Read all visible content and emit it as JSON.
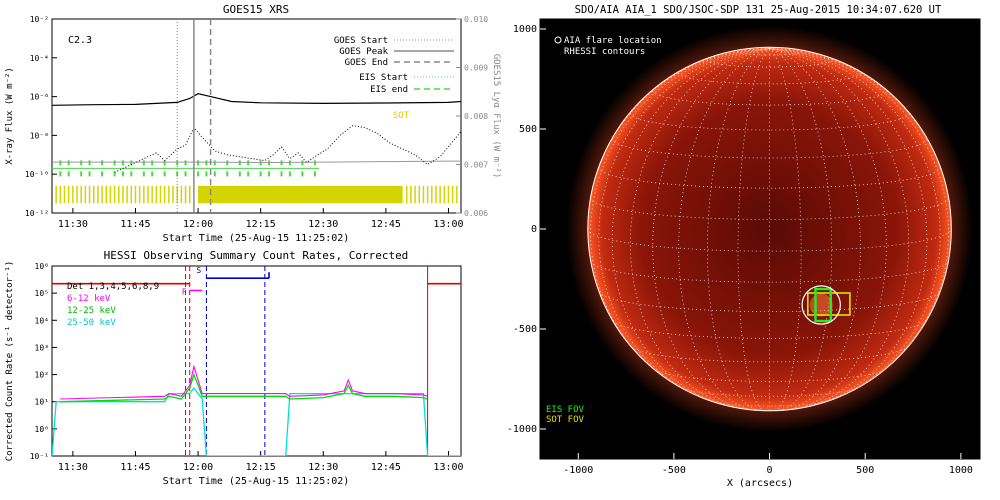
{
  "chart_data": [
    {
      "type": "line",
      "title": "GOES15 XRS",
      "xlabel": "Start Time (25-Aug-15 11:25:02)",
      "ylabel": "X-ray Flux (W m⁻²)",
      "ylabel_right": "GOES15 Lyα Flux (W m⁻²)",
      "x_ticks": [
        "11:30",
        "11:45",
        "12:00",
        "12:15",
        "12:30",
        "12:45",
        "13:00"
      ],
      "xlim": [
        "11:25",
        "13:03"
      ],
      "y_log_range": [
        -12,
        -2
      ],
      "y_ticks": [
        "10⁻²",
        "10⁻⁴",
        "10⁻⁶",
        "10⁻⁸",
        "10⁻¹⁰",
        "10⁻¹²"
      ],
      "y_right_range": [
        0.006,
        0.01
      ],
      "y_right_ticks": [
        "0.010",
        "0.009",
        "0.008",
        "0.007",
        "0.006"
      ],
      "class_label": "C2.3",
      "legend": [
        "GOES Start",
        "GOES Peak",
        "GOES End",
        "EIS Start",
        "EIS end",
        "SOT"
      ],
      "goes_start": "11:55",
      "goes_peak": "11:59",
      "goes_end": "12:03",
      "series": [
        {
          "name": "GOES long",
          "x": [
            "11:25",
            "11:35",
            "11:45",
            "11:55",
            "11:58",
            "12:00",
            "12:03",
            "12:08",
            "12:15",
            "12:30",
            "12:45",
            "13:00",
            "13:03"
          ],
          "log_values": [
            -6.45,
            -6.42,
            -6.4,
            -6.3,
            -6.1,
            -5.85,
            -6.0,
            -6.25,
            -6.32,
            -6.35,
            -6.33,
            -6.3,
            -6.25
          ]
        },
        {
          "name": "GOES short",
          "x": [
            "11:40",
            "11:45",
            "11:48",
            "11:50",
            "11:52",
            "11:55",
            "11:57",
            "11:59",
            "12:01",
            "12:04",
            "12:07",
            "12:10",
            "12:13",
            "12:16",
            "12:18",
            "12:20",
            "12:22",
            "12:24",
            "12:26",
            "12:28",
            "12:31",
            "12:34",
            "12:37",
            "12:40",
            "12:43",
            "12:46",
            "12:49",
            "12:52",
            "12:55",
            "12:58",
            "13:03"
          ],
          "log_values": [
            -9.9,
            -9.4,
            -9.1,
            -8.9,
            -9.3,
            -8.7,
            -8.5,
            -7.6,
            -8.1,
            -8.8,
            -9.0,
            -9.1,
            -9.2,
            -9.3,
            -9.0,
            -8.6,
            -9.2,
            -8.9,
            -9.4,
            -9.1,
            -8.7,
            -8.0,
            -7.5,
            -7.6,
            -7.9,
            -8.4,
            -8.7,
            -9.0,
            -9.5,
            -9.1,
            -7.8
          ]
        },
        {
          "name": "Lyα",
          "x": [
            "11:25",
            "11:45",
            "12:00",
            "12:15",
            "12:30",
            "12:45",
            "13:00",
            "13:03"
          ],
          "values": [
            0.00705,
            0.00705,
            0.00705,
            0.00704,
            0.00705,
            0.00706,
            0.00707,
            0.00707
          ]
        }
      ],
      "eis_marks": [
        "11:27",
        "11:29",
        "11:32",
        "11:34",
        "11:37",
        "11:40",
        "11:42",
        "11:44",
        "11:47",
        "11:49",
        "11:52",
        "11:55",
        "11:57",
        "12:00",
        "12:02",
        "12:04",
        "12:07",
        "12:10",
        "12:12",
        "12:15",
        "12:17",
        "12:20",
        "12:22",
        "12:25",
        "12:28"
      ],
      "eis_span": [
        "11:25",
        "12:29"
      ],
      "sot_dense_span": [
        "12:00",
        "12:49"
      ],
      "sot_marks": [
        "11:26",
        "11:27",
        "11:28",
        "11:29",
        "11:30",
        "11:31",
        "11:32",
        "11:33",
        "11:34",
        "11:35",
        "11:36",
        "11:37",
        "11:38",
        "11:39",
        "11:40",
        "11:41",
        "11:42",
        "11:43",
        "11:44",
        "11:45",
        "11:46",
        "11:47",
        "11:48",
        "11:49",
        "11:50",
        "11:51",
        "11:52",
        "11:53",
        "11:54",
        "11:55",
        "11:56",
        "11:57",
        "11:58",
        "12:50",
        "12:51",
        "12:52",
        "12:53",
        "12:54",
        "12:55",
        "12:56",
        "12:57",
        "12:58",
        "12:59",
        "13:00",
        "13:01",
        "13:02"
      ]
    },
    {
      "type": "line",
      "title": "HESSI Observing Summary Count Rates, Corrected",
      "xlabel": "Start Time (25-Aug-15 11:25:02)",
      "ylabel": "Corrected Count Rate (s⁻¹ detector⁻¹)",
      "x_ticks": [
        "11:30",
        "11:45",
        "12:00",
        "12:15",
        "12:30",
        "12:45",
        "13:00"
      ],
      "xlim": [
        "11:25",
        "13:03"
      ],
      "y_log_range": [
        -1,
        6
      ],
      "y_ticks": [
        "10⁶",
        "10⁵",
        "10⁴",
        "10³",
        "10²",
        "10¹",
        "10⁰",
        "10⁻¹"
      ],
      "detector_label": "Det 1,3,4,5,6,8,9",
      "legend": [
        "6-12 keV",
        "12-25 keV",
        "25-50 keV"
      ],
      "legend_colors": [
        "#ff00ff",
        "#00dd00",
        "#00dddd"
      ],
      "flag_labels": [
        "F",
        "S"
      ],
      "flag_f_span": [
        "11:58",
        "12:01"
      ],
      "flag_s_span": [
        "12:02",
        "12:17"
      ],
      "red_marks": [
        "11:57",
        "11:58",
        "12:55"
      ],
      "blue_marks": [
        "12:02",
        "12:16"
      ],
      "series": [
        {
          "name": "6-12 keV",
          "x": [
            "11:27",
            "11:52",
            "11:53",
            "11:56",
            "11:58",
            "11:59",
            "12:00",
            "12:01",
            "12:21",
            "12:22",
            "12:30",
            "12:35",
            "12:36",
            "12:37",
            "12:40",
            "12:47",
            "12:54",
            "12:55"
          ],
          "log_values": [
            1.1,
            1.2,
            1.3,
            1.2,
            1.6,
            2.3,
            1.8,
            1.3,
            1.3,
            1.2,
            1.25,
            1.4,
            1.8,
            1.4,
            1.3,
            1.3,
            1.25,
            1.2
          ]
        },
        {
          "name": "12-25 keV",
          "x": [
            "11:27",
            "11:52",
            "11:53",
            "11:56",
            "11:58",
            "11:59",
            "12:00",
            "12:01",
            "12:21",
            "12:22",
            "12:30",
            "12:35",
            "12:36",
            "12:37",
            "12:40",
            "12:47",
            "12:54",
            "12:55"
          ],
          "log_values": [
            1.0,
            1.1,
            1.2,
            1.1,
            1.5,
            2.0,
            1.6,
            1.2,
            1.2,
            1.1,
            1.15,
            1.3,
            1.6,
            1.3,
            1.2,
            1.2,
            1.15,
            1.1
          ]
        },
        {
          "name": "25-50 keV",
          "x": [
            "11:25",
            "11:26",
            "11:52",
            "11:53",
            "11:58",
            "11:59",
            "12:01",
            "12:02",
            "12:16",
            "12:17",
            "12:21",
            "12:22",
            "12:54",
            "12:55",
            "12:56",
            "13:03"
          ],
          "log_values": [
            -1,
            1.0,
            1.0,
            1.3,
            1.3,
            1.5,
            1.1,
            -1,
            -1,
            -1,
            -1,
            1.3,
            1.3,
            -1,
            -1,
            -1
          ]
        }
      ]
    },
    {
      "type": "scatter",
      "title": "SDO/AIA AIA_1 SDO/JSOC-SDP 131 25-Aug-2015 10:34:07.620 UT",
      "xlabel": "X (arcsecs)",
      "ylabel": "Y (arcsecs)",
      "xlim": [
        -1200,
        1100
      ],
      "ylim": [
        -1150,
        1050
      ],
      "x_ticks": [
        "-1000",
        "-500",
        "0",
        "500",
        "1000"
      ],
      "y_ticks": [
        "1000",
        "500",
        "0",
        "-500",
        "-1000"
      ],
      "legend_top": [
        "AIA flare location",
        "RHESSI contours"
      ],
      "legend_bottom": [
        "EIS FOV",
        "SOT FOV"
      ],
      "solar_radius": 950,
      "flare_location": [
        270,
        -380
      ],
      "flare_circle_radius": 100,
      "eis_fov": {
        "x": [
          240,
          320
        ],
        "y": [
          -460,
          -300
        ]
      },
      "sot_fov": {
        "x": [
          200,
          420
        ],
        "y": [
          -430,
          -320
        ]
      }
    }
  ]
}
